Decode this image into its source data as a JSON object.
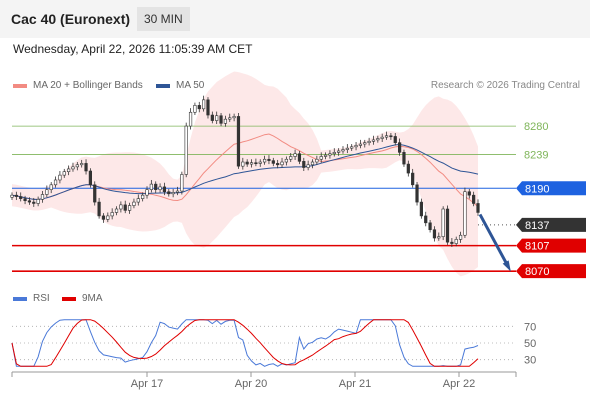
{
  "header": {
    "title": "Cac 40 (Euronext)",
    "timeframe": "30 MIN"
  },
  "date": "Wednesday, April 22, 2026 11:05:39 AM CET",
  "legend": {
    "ma20": {
      "label": "MA 20 + Bollinger Bands",
      "color": "#f28b82"
    },
    "ma50": {
      "label": "MA 50",
      "color": "#2e5596"
    }
  },
  "copyright": "Research © 2026 Trading Central",
  "rsi_legend": {
    "rsi": "RSI",
    "ma": "9MA"
  },
  "chart_data": {
    "type": "candlestick",
    "price_range": [
      8050,
      8325
    ],
    "levels": [
      {
        "value": "8280",
        "color": "#7fb55a",
        "style": "line"
      },
      {
        "value": "8239",
        "color": "#7fb55a",
        "style": "line"
      },
      {
        "value": "8190",
        "color": "#1e62e0",
        "style": "badge"
      },
      {
        "value": "8137",
        "color": "#333333",
        "style": "badge"
      },
      {
        "value": "8107",
        "color": "#e00000",
        "style": "badge"
      },
      {
        "value": "8070",
        "color": "#e00000",
        "style": "badge"
      }
    ],
    "x_ticks": [
      "Apr 17",
      "Apr 20",
      "Apr 21",
      "Apr 22"
    ],
    "rsi_levels": [
      "70",
      "50",
      "30"
    ],
    "closes": [
      8180,
      8178,
      8175,
      8172,
      8170,
      8168,
      8174,
      8181,
      8188,
      8195,
      8202,
      8209,
      8214,
      8218,
      8221,
      8224,
      8226,
      8215,
      8195,
      8170,
      8150,
      8145,
      8150,
      8155,
      8160,
      8166,
      8158,
      8165,
      8170,
      8175,
      8180,
      8188,
      8196,
      8188,
      8192,
      8185,
      8182,
      8184,
      8186,
      8210,
      8280,
      8300,
      8310,
      8305,
      8318,
      8296,
      8288,
      8295,
      8284,
      8290,
      8292,
      8294,
      8222,
      8228,
      8225,
      8227,
      8226,
      8228,
      8232,
      8230,
      8226,
      8224,
      8228,
      8232,
      8236,
      8240,
      8229,
      8220,
      8224,
      8228,
      8232,
      8236,
      8238,
      8240,
      8242,
      8244,
      8246,
      8248,
      8250,
      8252,
      8254,
      8256,
      8258,
      8260,
      8262,
      8264,
      8266,
      8265,
      8256,
      8242,
      8225,
      8212,
      8195,
      8170,
      8150,
      8140,
      8130,
      8118,
      8120,
      8160,
      8112,
      8110,
      8116,
      8122,
      8185,
      8180,
      8168,
      8155
    ]
  }
}
